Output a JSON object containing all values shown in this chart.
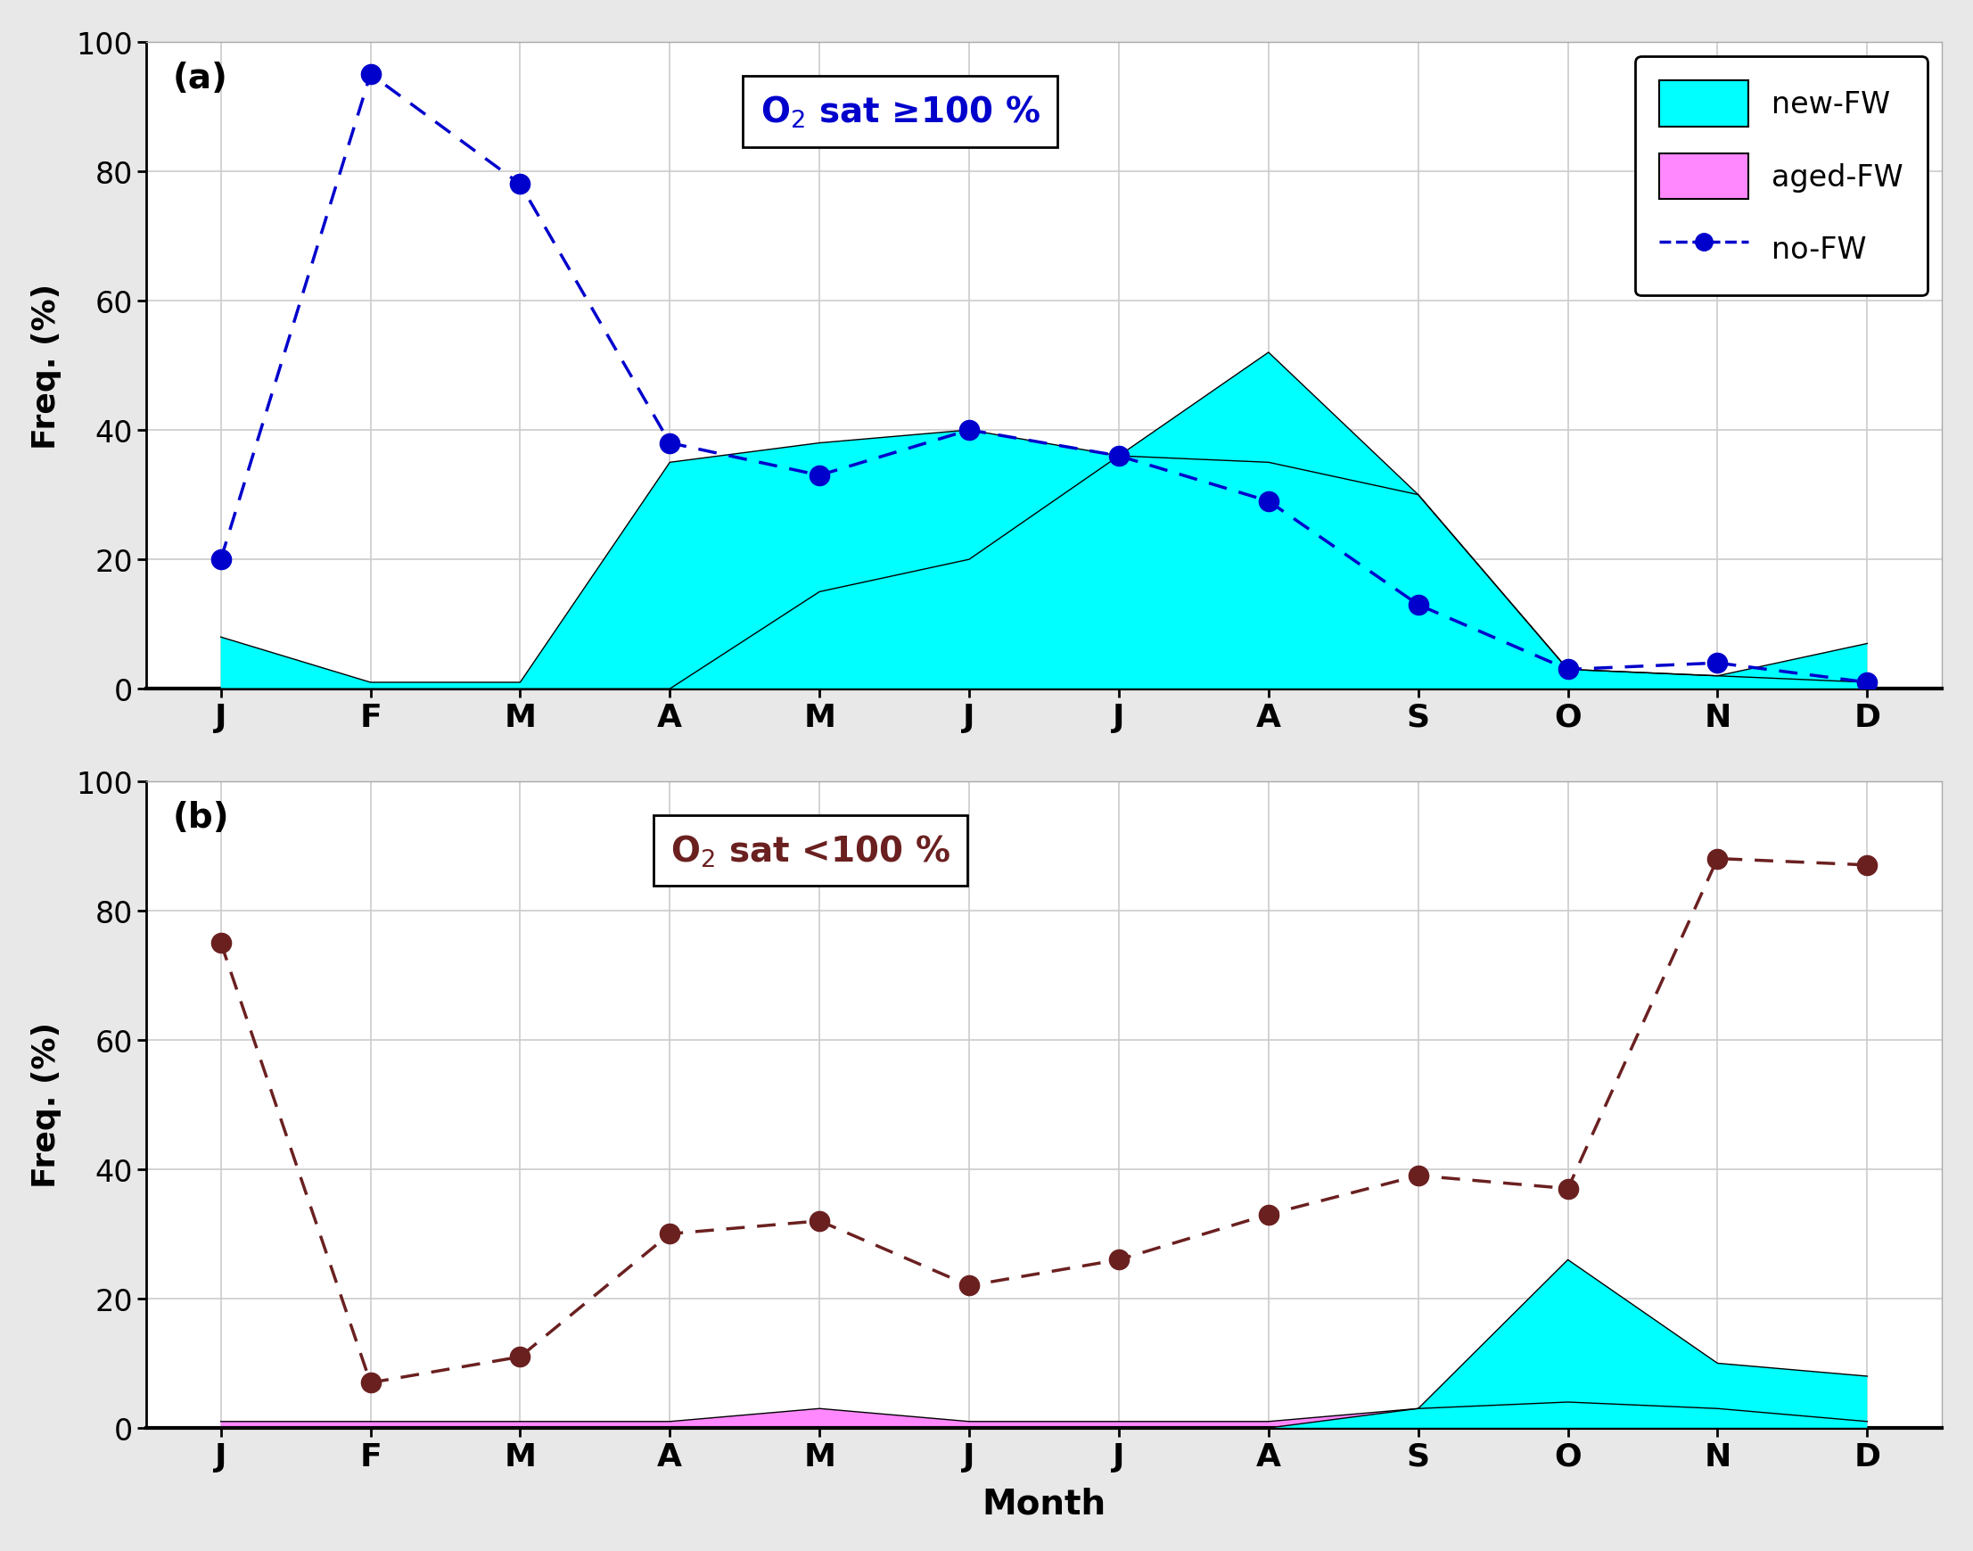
{
  "months": [
    "J",
    "F",
    "M",
    "A",
    "M",
    "J",
    "J",
    "A",
    "S",
    "O",
    "N",
    "D"
  ],
  "panel_a": {
    "title": "O$_2$ sat ≥100 %",
    "new_fw": [
      8,
      1,
      1,
      35,
      38,
      40,
      36,
      52,
      30,
      3,
      2,
      7
    ],
    "aged_fw": [
      0,
      0,
      0,
      0,
      15,
      20,
      36,
      35,
      30,
      3,
      2,
      1
    ],
    "no_fw": [
      20,
      95,
      78,
      38,
      33,
      40,
      36,
      29,
      13,
      3,
      4,
      1
    ],
    "no_fw_color": "#0000CC",
    "title_color": "#0000CC"
  },
  "panel_b": {
    "title": "O$_2$ sat <100 %",
    "new_fw": [
      0,
      0,
      0,
      0,
      0,
      0,
      0,
      0,
      3,
      26,
      10,
      8
    ],
    "aged_fw": [
      1,
      1,
      1,
      1,
      3,
      1,
      1,
      1,
      3,
      4,
      3,
      1
    ],
    "no_fw": [
      75,
      7,
      11,
      30,
      32,
      22,
      26,
      33,
      39,
      37,
      88,
      87
    ],
    "no_fw_color": "#6B2020",
    "title_color": "#6B2020"
  },
  "new_fw_color": "#00FFFF",
  "aged_fw_color": "#FF88FF",
  "ylabel": "Freq. (%)",
  "xlabel": "Month",
  "ylim": [
    0,
    100
  ],
  "yticks": [
    0,
    20,
    40,
    60,
    80,
    100
  ],
  "background_color": "#FFFFFF",
  "grid_color": "#CCCCCC",
  "fig_bg": "#E8E8E8",
  "label_panel_a": "(a)",
  "label_panel_b": "(b)"
}
